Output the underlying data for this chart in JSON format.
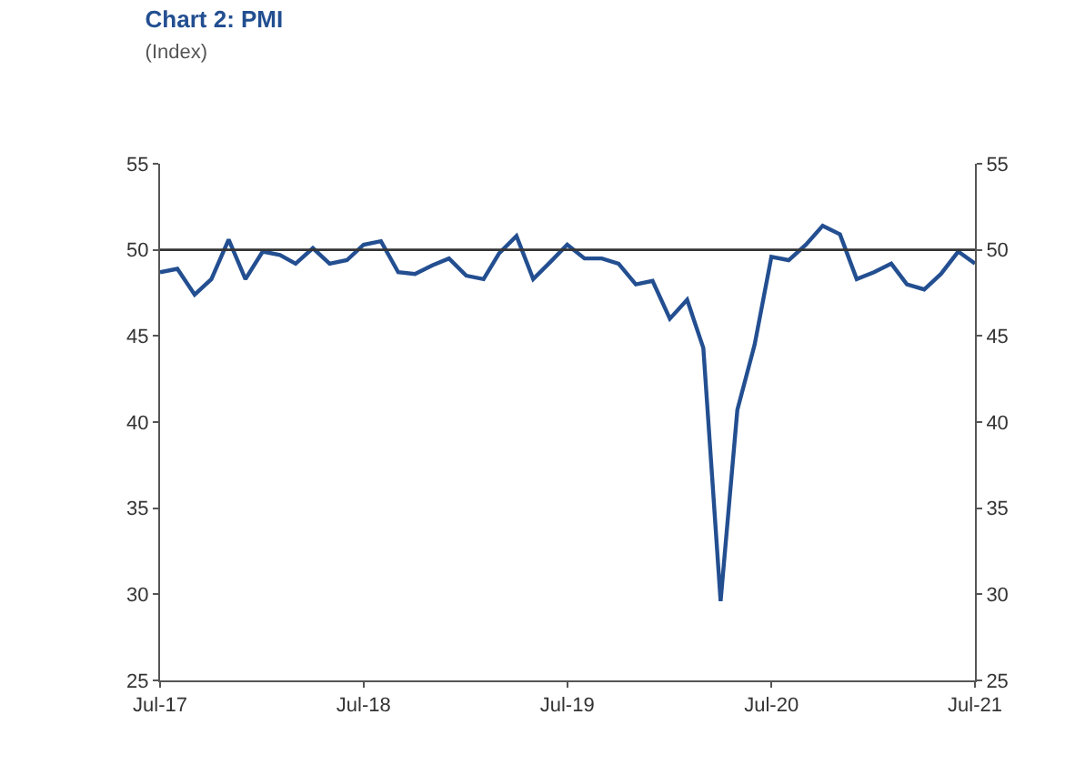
{
  "chart_data": {
    "type": "line",
    "title": "Chart 2: PMI",
    "subtitle": "(Index)",
    "x": [
      "2017-07",
      "2017-08",
      "2017-09",
      "2017-10",
      "2017-11",
      "2017-12",
      "2018-01",
      "2018-02",
      "2018-03",
      "2018-04",
      "2018-05",
      "2018-06",
      "2018-07",
      "2018-08",
      "2018-09",
      "2018-10",
      "2018-11",
      "2018-12",
      "2019-01",
      "2019-02",
      "2019-03",
      "2019-04",
      "2019-05",
      "2019-06",
      "2019-07",
      "2019-08",
      "2019-09",
      "2019-10",
      "2019-11",
      "2019-12",
      "2020-01",
      "2020-02",
      "2020-03",
      "2020-04",
      "2020-05",
      "2020-06",
      "2020-07",
      "2020-08",
      "2020-09",
      "2020-10",
      "2020-11",
      "2020-12",
      "2021-01",
      "2021-02",
      "2021-03",
      "2021-04",
      "2021-05",
      "2021-06",
      "2021-07"
    ],
    "series": [
      {
        "color": "#234f91",
        "values": [
          48.7,
          48.9,
          47.4,
          48.3,
          50.6,
          48.3,
          49.9,
          49.7,
          49.2,
          50.1,
          49.2,
          49.4,
          50.3,
          50.5,
          48.7,
          48.6,
          49.1,
          49.5,
          48.5,
          48.3,
          49.8,
          50.8,
          48.3,
          49.3,
          50.3,
          49.5,
          49.5,
          49.2,
          48.0,
          48.2,
          46.0,
          47.1,
          44.3,
          29.6,
          40.7,
          44.5,
          49.6,
          49.4,
          50.3,
          51.4,
          50.9,
          48.3,
          48.7,
          49.2,
          48.0,
          47.7,
          48.6,
          49.9,
          49.2
        ]
      }
    ],
    "xlim": [
      "2017-07",
      "2021-07"
    ],
    "xticks": [
      {
        "value": "2017-07",
        "label": "Jul-17"
      },
      {
        "value": "2018-07",
        "label": "Jul-18"
      },
      {
        "value": "2019-07",
        "label": "Jul-19"
      },
      {
        "value": "2020-07",
        "label": "Jul-20"
      },
      {
        "value": "2021-07",
        "label": "Jul-21"
      }
    ],
    "ylim": [
      25,
      55
    ],
    "yticks": [
      25,
      30,
      35,
      40,
      45,
      50,
      55
    ],
    "y2lim": [
      25,
      55
    ],
    "y2ticks": [
      25,
      30,
      35,
      40,
      45,
      50,
      55
    ],
    "ref_lines": [
      {
        "axis": "y",
        "value": 50,
        "color": "#333333"
      }
    ],
    "marker": "none",
    "line_style": "solid"
  }
}
